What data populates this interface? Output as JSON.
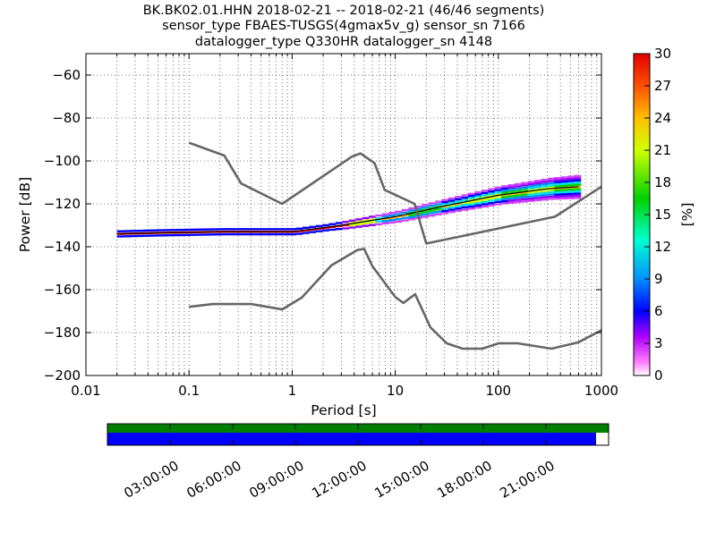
{
  "title_lines": [
    "BK.BK02.01.HHN   2018-02-21 -- 2018-02-21  (46/46 segments)",
    "sensor_type FBAES-TUSGS(4gmax5v_g) sensor_sn 7166",
    "datalogger_type Q330HR datalogger_sn 4148"
  ],
  "chart_data": {
    "type": "heatmap",
    "xlabel": "Period [s]",
    "ylabel": "Power [dB]",
    "xscale": "log",
    "xlim": [
      0.01,
      1000
    ],
    "ylim": [
      -200,
      -50
    ],
    "xticks": [
      {
        "value": 0.01,
        "label": "0.01"
      },
      {
        "value": 0.1,
        "label": "0.1"
      },
      {
        "value": 1,
        "label": "1"
      },
      {
        "value": 10,
        "label": "10"
      },
      {
        "value": 100,
        "label": "100"
      },
      {
        "value": 1000,
        "label": "1000"
      }
    ],
    "yticks": [
      {
        "value": -200,
        "label": "−200"
      },
      {
        "value": -180,
        "label": "−180"
      },
      {
        "value": -160,
        "label": "−160"
      },
      {
        "value": -140,
        "label": "−140"
      },
      {
        "value": -120,
        "label": "−120"
      },
      {
        "value": -100,
        "label": "−100"
      },
      {
        "value": -80,
        "label": "−80"
      },
      {
        "value": -60,
        "label": "−60"
      }
    ],
    "grid": "dotted",
    "noise_model_high": [
      [
        0.1,
        -91.5
      ],
      [
        0.22,
        -97.5
      ],
      [
        0.32,
        -110.5
      ],
      [
        0.8,
        -120
      ],
      [
        3.8,
        -98
      ],
      [
        4.6,
        -96.5
      ],
      [
        6.3,
        -101
      ],
      [
        7.9,
        -113.5
      ],
      [
        15.4,
        -120
      ],
      [
        20,
        -138.5
      ],
      [
        354,
        -126
      ],
      [
        1000,
        -112
      ]
    ],
    "noise_model_low": [
      [
        0.1,
        -168
      ],
      [
        0.17,
        -166.7
      ],
      [
        0.4,
        -166.7
      ],
      [
        0.8,
        -169.2
      ],
      [
        1.24,
        -163.7
      ],
      [
        2.4,
        -148.7
      ],
      [
        4.3,
        -141.5
      ],
      [
        5,
        -141
      ],
      [
        6,
        -149
      ],
      [
        10,
        -163.4
      ],
      [
        12,
        -166.2
      ],
      [
        15.6,
        -162.1
      ],
      [
        21.9,
        -177.5
      ],
      [
        31.6,
        -185
      ],
      [
        45,
        -187.5
      ],
      [
        70,
        -187.5
      ],
      [
        101,
        -185
      ],
      [
        154,
        -185
      ],
      [
        328,
        -187.5
      ],
      [
        600,
        -184.5
      ],
      [
        1000,
        -178.9
      ]
    ],
    "psd_mode_curve": [
      [
        0.02,
        -134
      ],
      [
        0.05,
        -133.5
      ],
      [
        0.2,
        -133
      ],
      [
        1,
        -133
      ],
      [
        3,
        -130
      ],
      [
        10,
        -126
      ],
      [
        30,
        -121
      ],
      [
        100,
        -116
      ],
      [
        300,
        -113
      ],
      [
        600,
        -112
      ]
    ],
    "colorbar": {
      "label": "[%]",
      "min": 0,
      "max": 30,
      "ticks": [
        0,
        3,
        6,
        9,
        12,
        15,
        18,
        21,
        24,
        27,
        30
      ]
    }
  },
  "timeline": {
    "tick_labels": [
      "03:00:00",
      "06:00:00",
      "09:00:00",
      "12:00:00",
      "15:00:00",
      "18:00:00",
      "21:00:00"
    ],
    "tick_hours": [
      3,
      6,
      9,
      12,
      15,
      18,
      21
    ],
    "data_coverage_fraction": 1.0,
    "gap_coverage_fraction": 0.975,
    "colors": {
      "data": "#008000",
      "segments": "#0000ff"
    }
  }
}
